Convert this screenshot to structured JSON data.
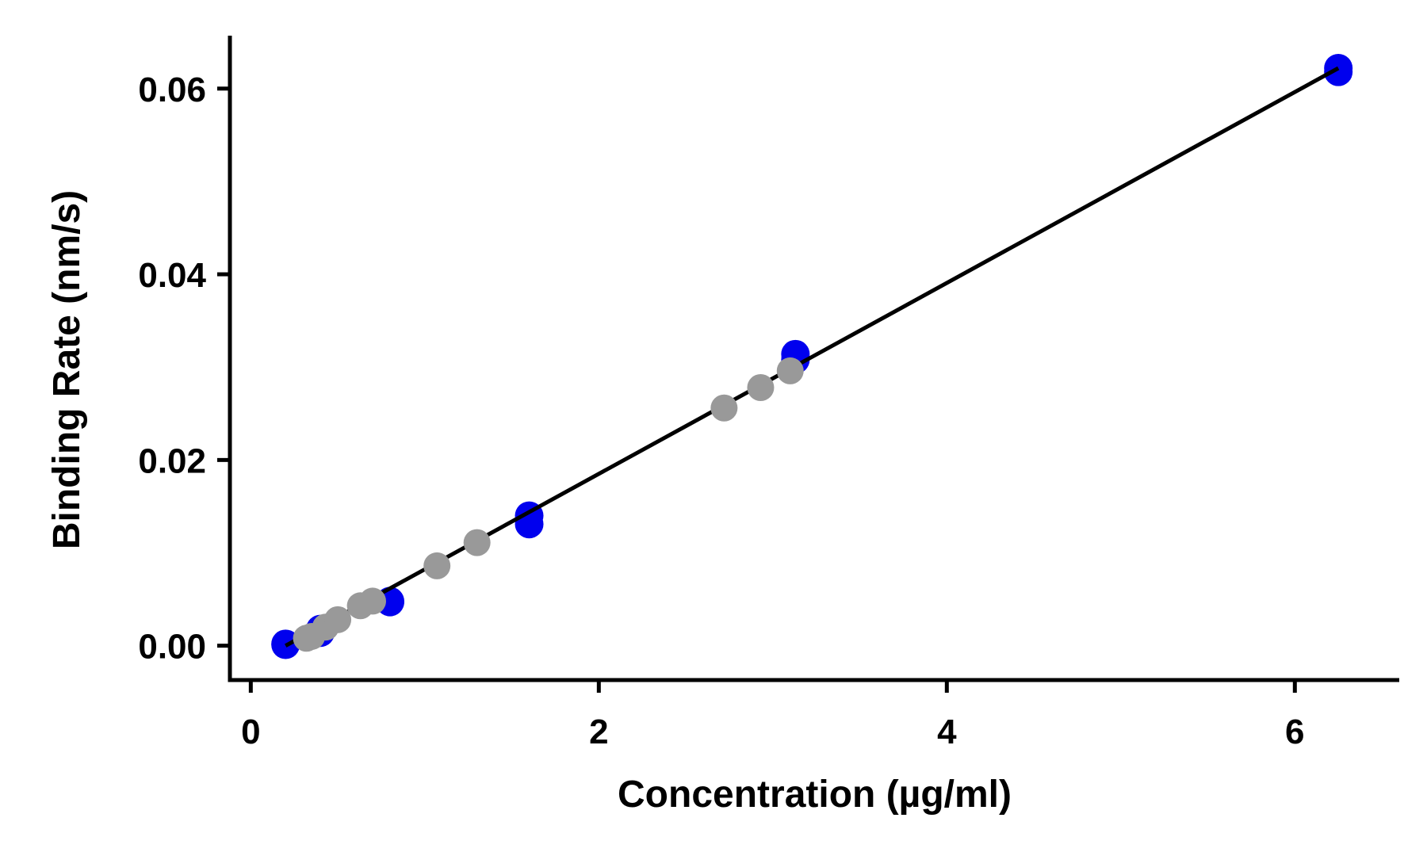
{
  "chart_data": {
    "type": "scatter",
    "title": "",
    "xlabel": "Concentration (µg/ml)",
    "ylabel": "Binding Rate (nm/s)",
    "xlim": [
      -0.12,
      6.6
    ],
    "ylim": [
      -0.0037,
      0.0657
    ],
    "xticks": [
      0,
      2,
      4,
      6
    ],
    "xtick_labels": [
      "0",
      "2",
      "4",
      "6"
    ],
    "yticks": [
      0.0,
      0.02,
      0.04,
      0.06
    ],
    "ytick_labels": [
      "0.00",
      "0.02",
      "0.04",
      "0.06"
    ],
    "grid": false,
    "legend": "none",
    "series": [
      {
        "color": "#0000ee",
        "points": [
          {
            "x": 0.2,
            "y": 0.0002
          },
          {
            "x": 0.2,
            "y": 0.0001
          },
          {
            "x": 0.4,
            "y": 0.0014
          },
          {
            "x": 0.4,
            "y": 0.0018
          },
          {
            "x": 0.8,
            "y": 0.0047
          },
          {
            "x": 0.8,
            "y": 0.0048
          },
          {
            "x": 1.6,
            "y": 0.014
          },
          {
            "x": 1.6,
            "y": 0.0131
          },
          {
            "x": 3.13,
            "y": 0.0314
          },
          {
            "x": 3.13,
            "y": 0.0308
          },
          {
            "x": 6.25,
            "y": 0.0622
          },
          {
            "x": 6.25,
            "y": 0.0618
          }
        ]
      },
      {
        "color": "#999999",
        "points": [
          {
            "x": 0.32,
            "y": 0.0008
          },
          {
            "x": 0.35,
            "y": 0.001
          },
          {
            "x": 0.43,
            "y": 0.002
          },
          {
            "x": 0.5,
            "y": 0.0028
          },
          {
            "x": 0.63,
            "y": 0.0043
          },
          {
            "x": 0.7,
            "y": 0.0048
          },
          {
            "x": 1.07,
            "y": 0.0086
          },
          {
            "x": 1.3,
            "y": 0.0111
          },
          {
            "x": 2.72,
            "y": 0.0256
          },
          {
            "x": 2.93,
            "y": 0.0278
          },
          {
            "x": 3.1,
            "y": 0.0296
          }
        ]
      }
    ],
    "fit_line": {
      "color": "#000000",
      "x": [
        0.2,
        6.25
      ],
      "y": [
        0.0,
        0.0622
      ]
    }
  }
}
